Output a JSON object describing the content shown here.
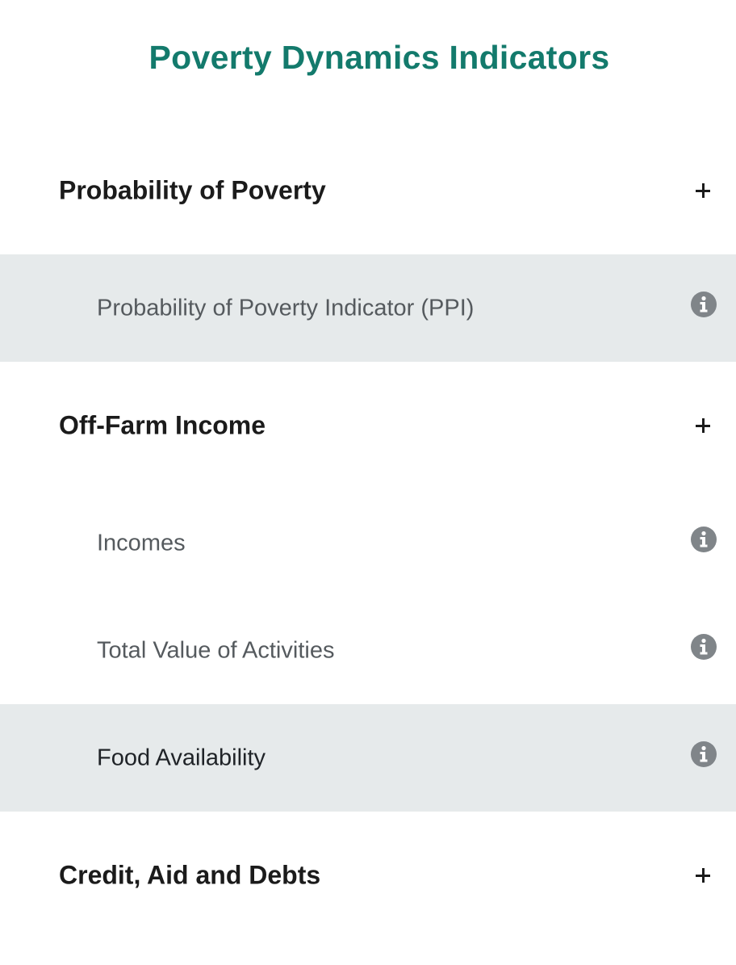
{
  "page": {
    "title": "Poverty Dynamics Indicators"
  },
  "colors": {
    "title": "#137a6c",
    "row_highlight": "#e6eaeb",
    "info_icon": "#808589"
  },
  "sections": [
    {
      "title": "Probability of Poverty",
      "toggle_icon": "plus-icon",
      "items": [
        {
          "label": "Probability of Poverty Indicator (PPI)",
          "icon": "info-icon",
          "highlighted": true
        }
      ]
    },
    {
      "title": "Off-Farm Income",
      "toggle_icon": "plus-icon",
      "items": [
        {
          "label": "Incomes",
          "icon": "info-icon",
          "highlighted": false
        },
        {
          "label": "Total Value of Activities",
          "icon": "info-icon",
          "highlighted": false
        },
        {
          "label": "Food Availability",
          "icon": "info-icon",
          "highlighted": true
        }
      ]
    },
    {
      "title": "Credit, Aid and Debts",
      "toggle_icon": "plus-icon",
      "items": []
    }
  ]
}
